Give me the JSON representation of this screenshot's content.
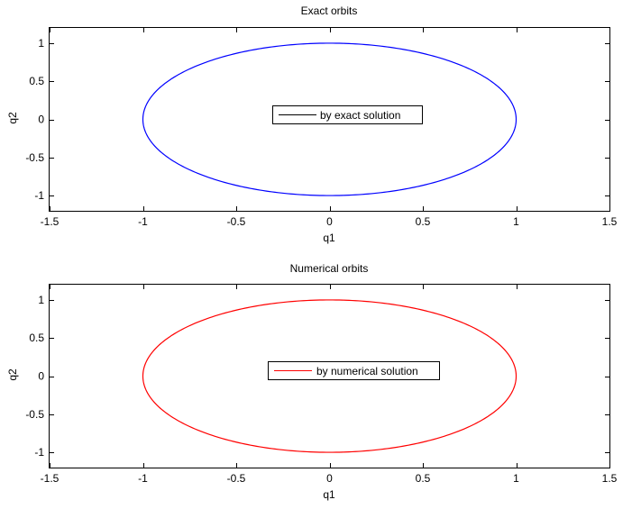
{
  "chart_data": [
    {
      "type": "line",
      "title": "Exact orbits",
      "xlabel": "q1",
      "ylabel": "q2",
      "xlim": [
        -1.5,
        1.5
      ],
      "ylim": [
        -1.2,
        1.2
      ],
      "xticks": [
        -1.5,
        -1,
        -0.5,
        0,
        0.5,
        1,
        1.5
      ],
      "xtick_labels": [
        "-1.5",
        "-1",
        "-0.5",
        "0",
        "0.5",
        "1",
        "1.5"
      ],
      "yticks": [
        -1,
        -0.5,
        0,
        0.5,
        1
      ],
      "ytick_labels": [
        "-1",
        "-0.5",
        "0",
        "0.5",
        "1"
      ],
      "grid": false,
      "legend_position": "center",
      "series": [
        {
          "name": "by exact solution",
          "color": "#0000ff",
          "shape": "ellipse",
          "center": [
            0,
            0
          ],
          "semi_axes": [
            1,
            1
          ]
        }
      ],
      "legend_line_color": "#000000"
    },
    {
      "type": "line",
      "title": "Numerical orbits",
      "xlabel": "q1",
      "ylabel": "q2",
      "xlim": [
        -1.5,
        1.5
      ],
      "ylim": [
        -1.2,
        1.2
      ],
      "xticks": [
        -1.5,
        -1,
        -0.5,
        0,
        0.5,
        1,
        1.5
      ],
      "xtick_labels": [
        "-1.5",
        "-1",
        "-0.5",
        "0",
        "0.5",
        "1",
        "1.5"
      ],
      "yticks": [
        -1,
        -0.5,
        0,
        0.5,
        1
      ],
      "ytick_labels": [
        "-1",
        "-0.5",
        "0",
        "0.5",
        "1"
      ],
      "grid": false,
      "legend_position": "center",
      "series": [
        {
          "name": "by numerical solution",
          "color": "#ff0000",
          "shape": "ellipse",
          "center": [
            0,
            0
          ],
          "semi_axes": [
            1,
            1
          ]
        }
      ],
      "legend_line_color": "#ff0000"
    }
  ]
}
